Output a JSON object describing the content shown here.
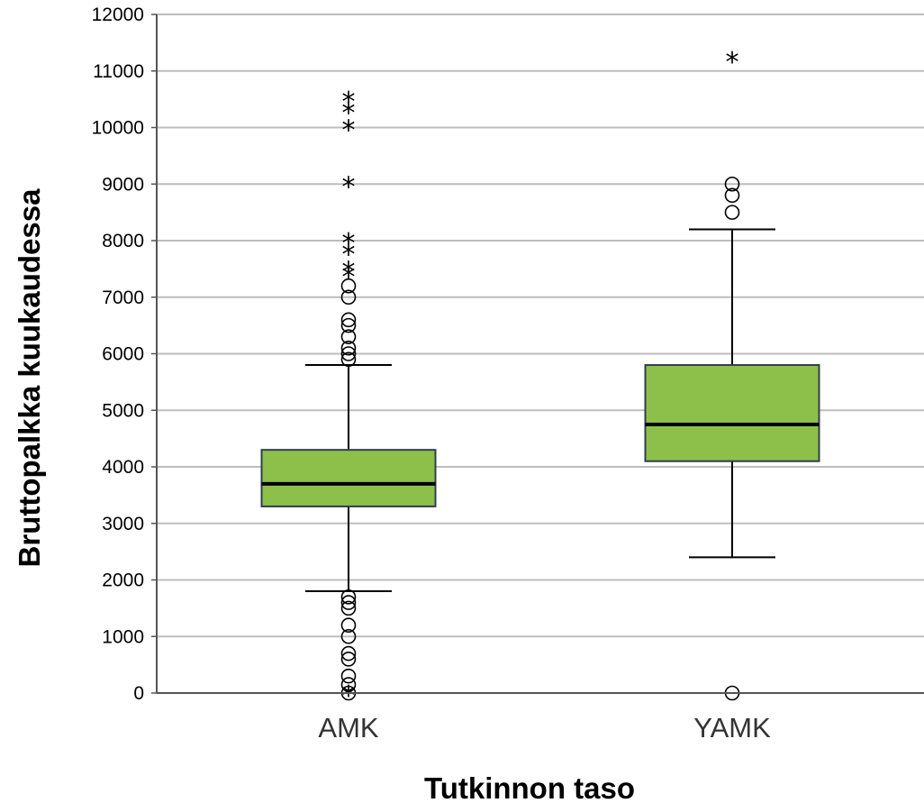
{
  "chart_data": {
    "type": "boxplot",
    "xlabel": "Tutkinnon taso",
    "ylabel": "Bruttopalkka kuukaudessa",
    "ylim": [
      0,
      12000
    ],
    "yticks": [
      0,
      1000,
      2000,
      3000,
      4000,
      5000,
      6000,
      7000,
      8000,
      9000,
      10000,
      11000,
      12000
    ],
    "grid": true,
    "box_color": "#8DC04A",
    "categories": [
      "AMK",
      "YAMK"
    ],
    "boxes": [
      {
        "category": "AMK",
        "whisker_low": 1800,
        "q1": 3300,
        "median": 3700,
        "q3": 4300,
        "whisker_high": 5800,
        "outliers": [
          0,
          150,
          300,
          600,
          700,
          1000,
          1200,
          1500,
          1600,
          1700,
          5900,
          6000,
          6100,
          6300,
          6500,
          6600,
          7000,
          7200
        ],
        "extremes": [
          0,
          7400,
          7500,
          7800,
          8000,
          9000,
          10000,
          10300,
          10500
        ]
      },
      {
        "category": "YAMK",
        "whisker_low": 2400,
        "q1": 4100,
        "median": 4750,
        "q3": 5800,
        "whisker_high": 8200,
        "outliers": [
          0,
          8500,
          8800,
          9000
        ],
        "extremes": [
          11200
        ]
      }
    ]
  }
}
